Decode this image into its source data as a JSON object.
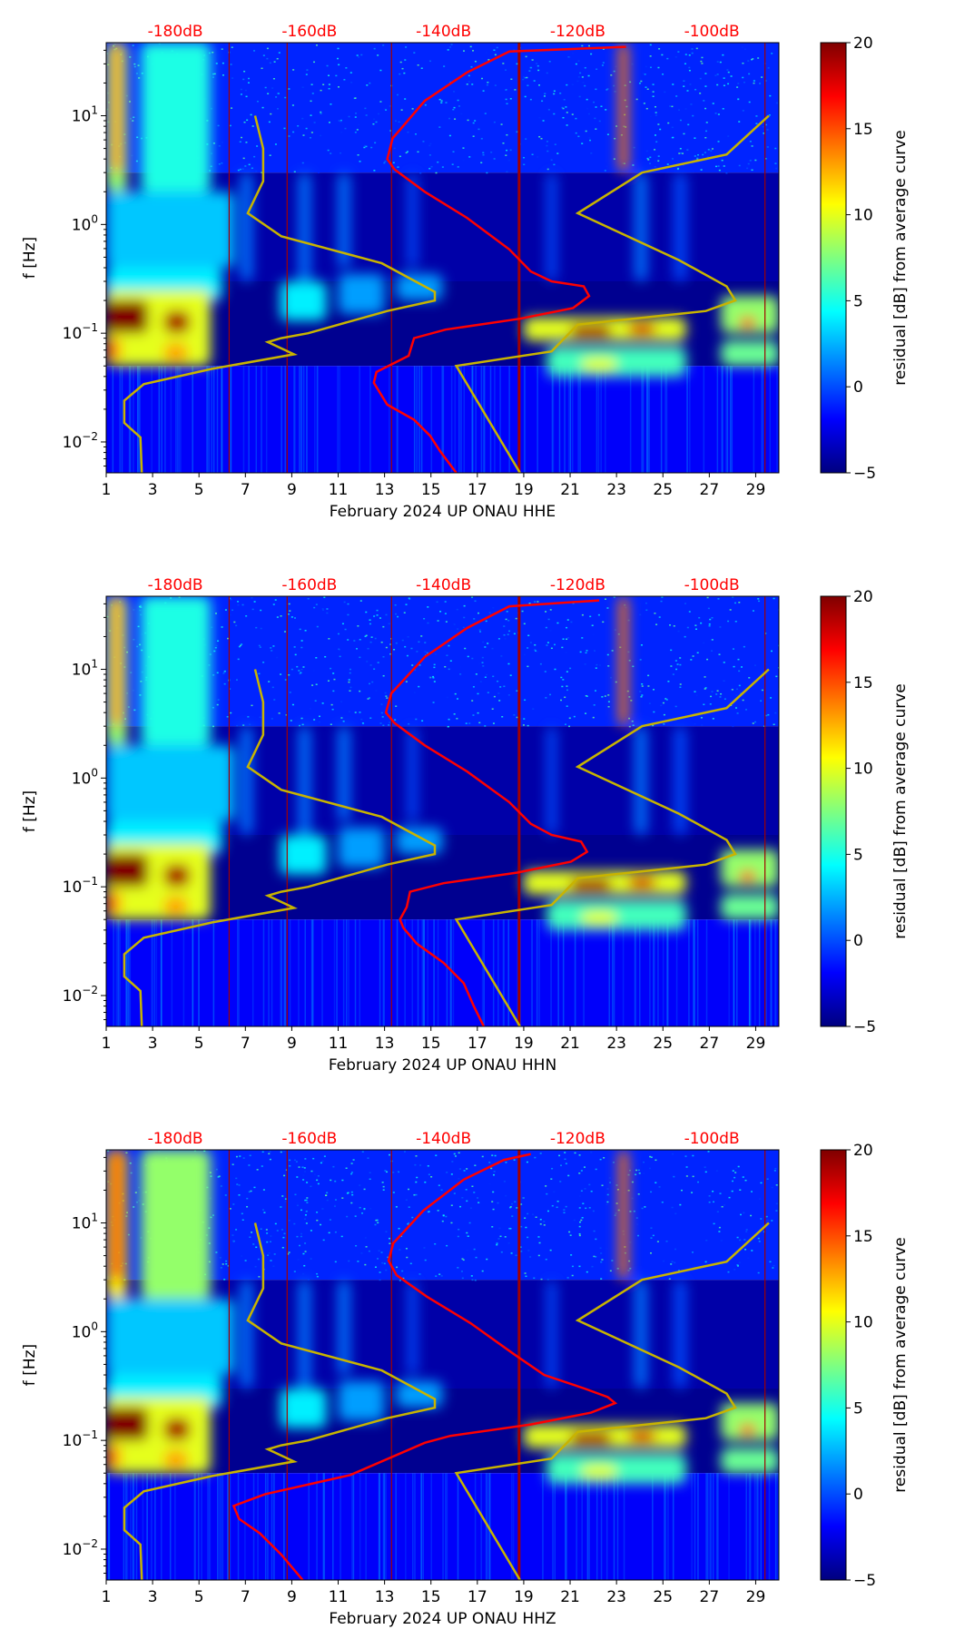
{
  "chart_data": [
    {
      "type": "heatmap",
      "xlabel": "February 2024 UP ONAU  HHE",
      "ylabel": "f [Hz]",
      "xlim": [
        1,
        30
      ],
      "ylim": [
        0.0052,
        47
      ],
      "yscale": "log",
      "red_curve": [
        [
          -112.8,
          43
        ],
        [
          -130.2,
          39
        ],
        [
          -136.5,
          25
        ],
        [
          -142.8,
          13.7
        ],
        [
          -147.6,
          6.2
        ],
        [
          -148.4,
          4.0
        ],
        [
          -147.3,
          3.2
        ],
        [
          -142.8,
          2.0
        ],
        [
          -136.5,
          1.15
        ],
        [
          -130.2,
          0.59
        ],
        [
          -127,
          0.37
        ],
        [
          -123.9,
          0.3
        ],
        [
          -119.1,
          0.27
        ],
        [
          -118.3,
          0.22
        ],
        [
          -120.7,
          0.17
        ],
        [
          -128.6,
          0.136
        ],
        [
          -139.7,
          0.108
        ],
        [
          -144.4,
          0.09
        ],
        [
          -145.2,
          0.062
        ],
        [
          -150,
          0.044
        ],
        [
          -150.4,
          0.035
        ],
        [
          -148.4,
          0.022
        ],
        [
          -144.4,
          0.016
        ],
        [
          -142,
          0.0114
        ],
        [
          -140.5,
          0.0082
        ],
        [
          -138.1,
          0.0052
        ]
      ]
    },
    {
      "type": "heatmap",
      "xlabel": "February 2024 UP ONAU  HHN",
      "ylabel": "f [Hz]",
      "xlim": [
        1,
        30
      ],
      "ylim": [
        0.0052,
        47
      ],
      "yscale": "log",
      "red_curve": [
        [
          -116.8,
          43
        ],
        [
          -130.2,
          38
        ],
        [
          -136.5,
          24
        ],
        [
          -142.8,
          13
        ],
        [
          -147.8,
          6.0
        ],
        [
          -148.6,
          4.0
        ],
        [
          -147.3,
          3.2
        ],
        [
          -142.8,
          2.0
        ],
        [
          -136.5,
          1.15
        ],
        [
          -130.2,
          0.6
        ],
        [
          -127,
          0.38
        ],
        [
          -123.9,
          0.3
        ],
        [
          -119.5,
          0.26
        ],
        [
          -118.6,
          0.21
        ],
        [
          -121,
          0.17
        ],
        [
          -129,
          0.135
        ],
        [
          -140,
          0.108
        ],
        [
          -145,
          0.09
        ],
        [
          -145.5,
          0.065
        ],
        [
          -146.5,
          0.05
        ],
        [
          -146,
          0.042
        ],
        [
          -144,
          0.03
        ],
        [
          -140,
          0.02
        ],
        [
          -137,
          0.013
        ],
        [
          -135.5,
          0.008
        ],
        [
          -134,
          0.0052
        ]
      ]
    },
    {
      "type": "heatmap",
      "xlabel": "February 2024 UP ONAU  HHZ",
      "ylabel": "f [Hz]",
      "xlim": [
        1,
        30
      ],
      "ylim": [
        0.0052,
        47
      ],
      "yscale": "log",
      "red_curve": [
        [
          -127,
          43
        ],
        [
          -131,
          38
        ],
        [
          -137,
          25
        ],
        [
          -143,
          13
        ],
        [
          -147.5,
          6.5
        ],
        [
          -148.2,
          4.5
        ],
        [
          -147,
          3.3
        ],
        [
          -142.5,
          2.1
        ],
        [
          -136,
          1.2
        ],
        [
          -129.5,
          0.62
        ],
        [
          -125,
          0.4
        ],
        [
          -119,
          0.3
        ],
        [
          -115.5,
          0.25
        ],
        [
          -114.4,
          0.22
        ],
        [
          -118,
          0.18
        ],
        [
          -127,
          0.14
        ],
        [
          -139,
          0.11
        ],
        [
          -142.8,
          0.095
        ],
        [
          -153.9,
          0.048
        ],
        [
          -166.6,
          0.032
        ],
        [
          -171.3,
          0.025
        ],
        [
          -170.5,
          0.019
        ],
        [
          -167.4,
          0.014
        ],
        [
          -164.2,
          0.0089
        ],
        [
          -161,
          0.0052
        ]
      ]
    }
  ],
  "shared": {
    "x_ticks": [
      1,
      3,
      5,
      7,
      9,
      11,
      13,
      15,
      17,
      19,
      21,
      23,
      25,
      27,
      29
    ],
    "y_ticks": [
      {
        "value": 10,
        "base": "10",
        "exp": "1"
      },
      {
        "value": 1,
        "base": "10",
        "exp": "0"
      },
      {
        "value": 0.1,
        "base": "10",
        "exp": "−1"
      },
      {
        "value": 0.01,
        "base": "10",
        "exp": "−2"
      }
    ],
    "top_axis": {
      "range_db": [
        -190.3,
        -90
      ],
      "ticks": [
        {
          "value": -180,
          "label": "-180dB"
        },
        {
          "value": -160,
          "label": "-160dB"
        },
        {
          "value": -140,
          "label": "-140dB"
        },
        {
          "value": -120,
          "label": "-120dB"
        },
        {
          "value": -100,
          "label": "-100dB"
        }
      ]
    },
    "nlnm_curve": [
      [
        -168.1,
        10
      ],
      [
        -166.9,
        5
      ],
      [
        -166.9,
        2.5
      ],
      [
        -169.2,
        1.27
      ],
      [
        -164.2,
        0.78
      ],
      [
        -149.2,
        0.44
      ],
      [
        -141.3,
        0.24
      ],
      [
        -141.3,
        0.2
      ],
      [
        -148.4,
        0.16
      ],
      [
        -160.2,
        0.1
      ],
      [
        -164.2,
        0.09
      ],
      [
        -166.2,
        0.083
      ],
      [
        -162.3,
        0.064
      ],
      [
        -174.5,
        0.047
      ],
      [
        -184.7,
        0.034
      ],
      [
        -187.6,
        0.024
      ],
      [
        -187.6,
        0.015
      ],
      [
        -185.2,
        0.011
      ],
      [
        -185,
        0.0052
      ]
    ],
    "nhnm_curve": [
      [
        -91.5,
        10
      ],
      [
        -97.8,
        4.4
      ],
      [
        -110.4,
        3.0
      ],
      [
        -120,
        1.27
      ],
      [
        -104.9,
        0.47
      ],
      [
        -97.8,
        0.27
      ],
      [
        -96.5,
        0.2
      ],
      [
        -100.9,
        0.16
      ],
      [
        -120,
        0.12
      ],
      [
        -123.9,
        0.068
      ],
      [
        -138.1,
        0.05
      ],
      [
        -128.6,
        0.0052
      ]
    ],
    "vertical_markers_days": [
      6.3,
      8.8,
      13.3,
      18.8,
      29.4
    ],
    "residual_features": [
      {
        "d": [
          1,
          1.9
        ],
        "f": [
          2,
          47
        ],
        "v": 8
      },
      {
        "d": [
          1.2,
          1.7
        ],
        "f": [
          3,
          47
        ],
        "v": 13
      },
      {
        "d": [
          2.5,
          5.5
        ],
        "f": [
          2,
          47
        ],
        "v": 5
      },
      {
        "d": [
          1,
          6.5
        ],
        "f": [
          0.4,
          2
        ],
        "v": 3
      },
      {
        "d": [
          1,
          6
        ],
        "f": [
          0.2,
          0.4
        ],
        "v": 4
      },
      {
        "d": [
          1,
          5.5
        ],
        "f": [
          0.05,
          0.25
        ],
        "v": 10
      },
      {
        "d": [
          1,
          2.8
        ],
        "f": [
          0.1,
          0.2
        ],
        "v": 20
      },
      {
        "d": [
          3.5,
          4.6
        ],
        "f": [
          0.1,
          0.16
        ],
        "v": 19
      },
      {
        "d": [
          1,
          1.6
        ],
        "f": [
          0.055,
          0.09
        ],
        "v": 14
      },
      {
        "d": [
          3.5,
          4.5
        ],
        "f": [
          0.055,
          0.08
        ],
        "v": 13
      },
      {
        "d": [
          8.5,
          10.5
        ],
        "f": [
          0.13,
          0.3
        ],
        "v": 4
      },
      {
        "d": [
          11,
          13
        ],
        "f": [
          0.15,
          0.35
        ],
        "v": 2
      },
      {
        "d": [
          13.5,
          15.5
        ],
        "f": [
          0.2,
          0.35
        ],
        "v": 2
      },
      {
        "d": [
          19,
          26
        ],
        "f": [
          0.085,
          0.14
        ],
        "v": 10
      },
      {
        "d": [
          21,
          22.8
        ],
        "f": [
          0.09,
          0.12
        ],
        "v": 19
      },
      {
        "d": [
          23.5,
          24.7
        ],
        "f": [
          0.095,
          0.125
        ],
        "v": 18
      },
      {
        "d": [
          20,
          26
        ],
        "f": [
          0.04,
          0.075
        ],
        "v": 6
      },
      {
        "d": [
          21.5,
          23
        ],
        "f": [
          0.045,
          0.06
        ],
        "v": 10
      },
      {
        "d": [
          27.5,
          30
        ],
        "f": [
          0.1,
          0.22
        ],
        "v": 8
      },
      {
        "d": [
          28.3,
          29
        ],
        "f": [
          0.11,
          0.14
        ],
        "v": 16
      },
      {
        "d": [
          27.5,
          30
        ],
        "f": [
          0.05,
          0.085
        ],
        "v": 7
      },
      {
        "d": [
          23.1,
          23.5
        ],
        "f": [
          3,
          47
        ],
        "v": 14
      },
      {
        "d": [
          6.8,
          7.3
        ],
        "f": [
          0.3,
          3
        ],
        "v": 1
      },
      {
        "d": [
          9.3,
          9.8
        ],
        "f": [
          0.3,
          3
        ],
        "v": 1
      },
      {
        "d": [
          11,
          11.5
        ],
        "f": [
          0.4,
          3
        ],
        "v": 1
      },
      {
        "d": [
          14,
          14.4
        ],
        "f": [
          0.4,
          3
        ],
        "v": 0
      },
      {
        "d": [
          20,
          20.4
        ],
        "f": [
          0.3,
          3
        ],
        "v": 0
      },
      {
        "d": [
          23.8,
          24.3
        ],
        "f": [
          0.3,
          3
        ],
        "v": 1
      },
      {
        "d": [
          25.5,
          26
        ],
        "f": [
          0.3,
          3
        ],
        "v": 0
      }
    ],
    "colorbar": {
      "label": "residual [dB] from average curve",
      "range": [
        -5,
        20
      ],
      "ticks": [
        "20",
        "15",
        "10",
        "5",
        "0",
        "−5"
      ],
      "tick_values": [
        20,
        15,
        10,
        5,
        0,
        -5
      ]
    },
    "colors": {
      "curve": "#ff0000",
      "noise_model": "#c8b400",
      "marker": "#a00000"
    }
  }
}
